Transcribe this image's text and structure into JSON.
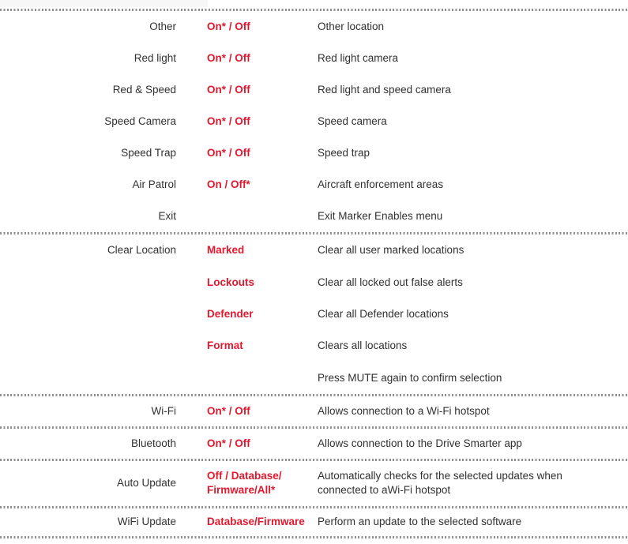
{
  "colors": {
    "accent_red": "#e1192e",
    "text": "#323031",
    "divider_dot_gray": "#8f8f8f",
    "background": "#ffffff"
  },
  "table": {
    "columns": [
      "setting",
      "options",
      "description"
    ],
    "sections": [
      {
        "rows": [
          {
            "setting": "Other",
            "option": "On* / Off",
            "description": "Other location"
          },
          {
            "setting": "Red light",
            "option": "On* / Off",
            "description": "Red light camera"
          },
          {
            "setting": "Red & Speed",
            "option": "On* / Off",
            "description": "Red light and speed camera"
          },
          {
            "setting": "Speed Camera",
            "option": "On* / Off",
            "description": "Speed camera"
          },
          {
            "setting": "Speed Trap",
            "option": "On* / Off",
            "description": "Speed trap"
          },
          {
            "setting": "Air Patrol",
            "option": "On / Off*",
            "description": "Aircraft enforcement areas"
          },
          {
            "setting": "Exit",
            "option": "",
            "description": "Exit Marker Enables menu"
          }
        ]
      },
      {
        "rows": [
          {
            "setting": "Clear Location",
            "option": "Marked",
            "description": "Clear all user marked locations"
          },
          {
            "setting": "",
            "option": "Lockouts",
            "description": "Clear all locked out false alerts"
          },
          {
            "setting": "",
            "option": "Defender",
            "description": "Clear all Defender locations"
          },
          {
            "setting": "",
            "option": "Format",
            "description": "Clears all locations"
          },
          {
            "setting": "",
            "option": "",
            "description": "Press MUTE again to confirm selection"
          }
        ]
      },
      {
        "rows": [
          {
            "setting": "Wi-Fi",
            "option": "On* / Off",
            "description": "Allows connection to a Wi-Fi hotspot"
          }
        ]
      },
      {
        "rows": [
          {
            "setting": "Bluetooth",
            "option": "On* / Off",
            "description": "Allows connection to the Drive Smarter app"
          }
        ]
      },
      {
        "rows": [
          {
            "setting": "Auto Update",
            "option": "Off / Database/\nFirmware/All*",
            "description": "Automatically checks for the selected updates when\nconnected to aWi-Fi hotspot"
          }
        ]
      },
      {
        "rows": [
          {
            "setting": "WiFi Update",
            "option": "Database/Firmware",
            "description": "Perform an update to the selected software"
          }
        ]
      }
    ]
  }
}
